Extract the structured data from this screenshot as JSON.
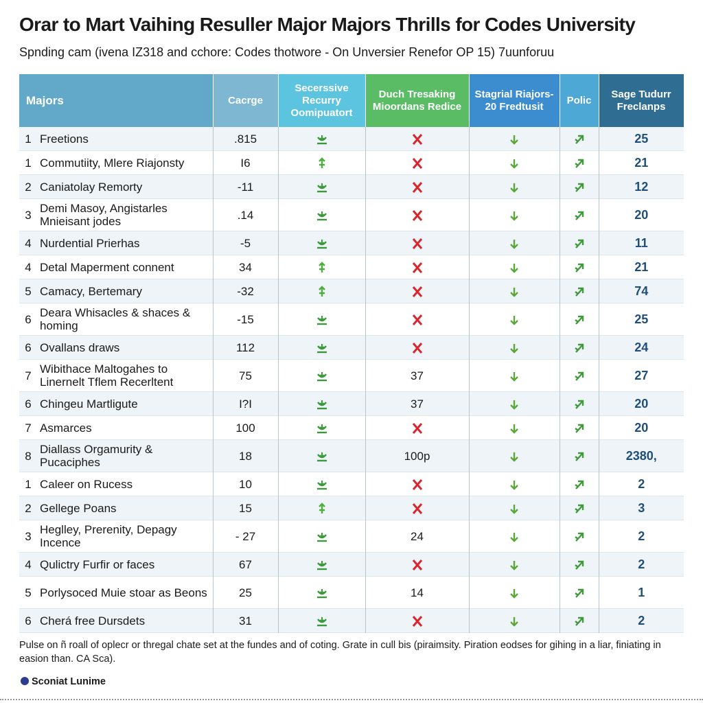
{
  "header": {
    "title": "Orar to Mart Vaihing Resuller Major Majors Thrills for Codes University",
    "subtitle": "Spnding cam (ivena IZ318 and cchore: Codes thotwore - On Unversier Renefor OP 15) 7uunforuu"
  },
  "table": {
    "columns": [
      "Majors",
      "Cacrge",
      "Secerssive Recurry Oomipuatort",
      "Duch Tresaking Mioordans Redice",
      "Stagrial Riajors- 20 Fredtusit",
      "Polic",
      "Sage Tudurr Freclanps"
    ],
    "rows": [
      {
        "num": "1",
        "major": "Freetions",
        "charge": ".815",
        "score": "25"
      },
      {
        "num": "1",
        "major": "Commutiity, Mlere Riajonsty",
        "charge": "I6",
        "score": "21"
      },
      {
        "num": "2",
        "major": "Caniatolay Remorty",
        "charge": "-11",
        "score": "12"
      },
      {
        "num": "3",
        "major": "Demi Masoy, Angistarles Mnieisant jodes",
        "charge": ".14",
        "score": "20"
      },
      {
        "num": "4",
        "major": "Nurdential Prierhas",
        "charge": "-5",
        "score": "11"
      },
      {
        "num": "4",
        "major": "Detal Maperment connent",
        "charge": "34",
        "score": "21"
      },
      {
        "num": "5",
        "major": "Camacy, Bertemary",
        "charge": "-32",
        "score": "74"
      },
      {
        "num": "6",
        "major": "Deara Whisacles & shaces & homing",
        "charge": "-15",
        "score": "25"
      },
      {
        "num": "6",
        "major": "Ovallans draws",
        "charge": "112",
        "score": "24"
      },
      {
        "num": "7",
        "major": "Wibithace Maltogahes to Linernelt Tflem Recerltent",
        "charge": "75",
        "col4": "37",
        "score": "27"
      },
      {
        "num": "6",
        "major": "Chingeu Martligute",
        "charge": "I?I",
        "col4": "37",
        "score": "20"
      },
      {
        "num": "7",
        "major": "Asmarces",
        "charge": "100",
        "score": "20"
      },
      {
        "num": "8",
        "major": "Diallass Orgamurity & Pucaciphes",
        "charge": "18",
        "col4": "100p",
        "score": "2380,"
      },
      {
        "num": "1",
        "major": "Caleer on Rucess",
        "charge": "10",
        "score": "2"
      },
      {
        "num": "2",
        "major": "Gellege Poans",
        "charge": "15",
        "score": "3"
      },
      {
        "num": "3",
        "major": "Heglley, Prerenity, Depagy Incence",
        "charge": "- 27",
        "col4": "24",
        "score": "2"
      },
      {
        "num": "4",
        "major": "Qulictry Furfir or faces",
        "charge": "67",
        "score": "2"
      },
      {
        "num": "5",
        "major": "Porlysoced Muie stoar as Beons",
        "charge": "25",
        "col4": "14",
        "score": "1"
      },
      {
        "num": "6",
        "major": "Cherá free Dursdets",
        "charge": "31",
        "score": "2"
      }
    ]
  },
  "footer": {
    "note": "Pulse on ñ roall of oplecr or thregal chate set at the fundes and of coting. Grate in cull bis (piraimsity. Piration eodses for gihing in a liar, finiating in easion than. CA Sca).",
    "brand": "Sconiat Lunime"
  }
}
